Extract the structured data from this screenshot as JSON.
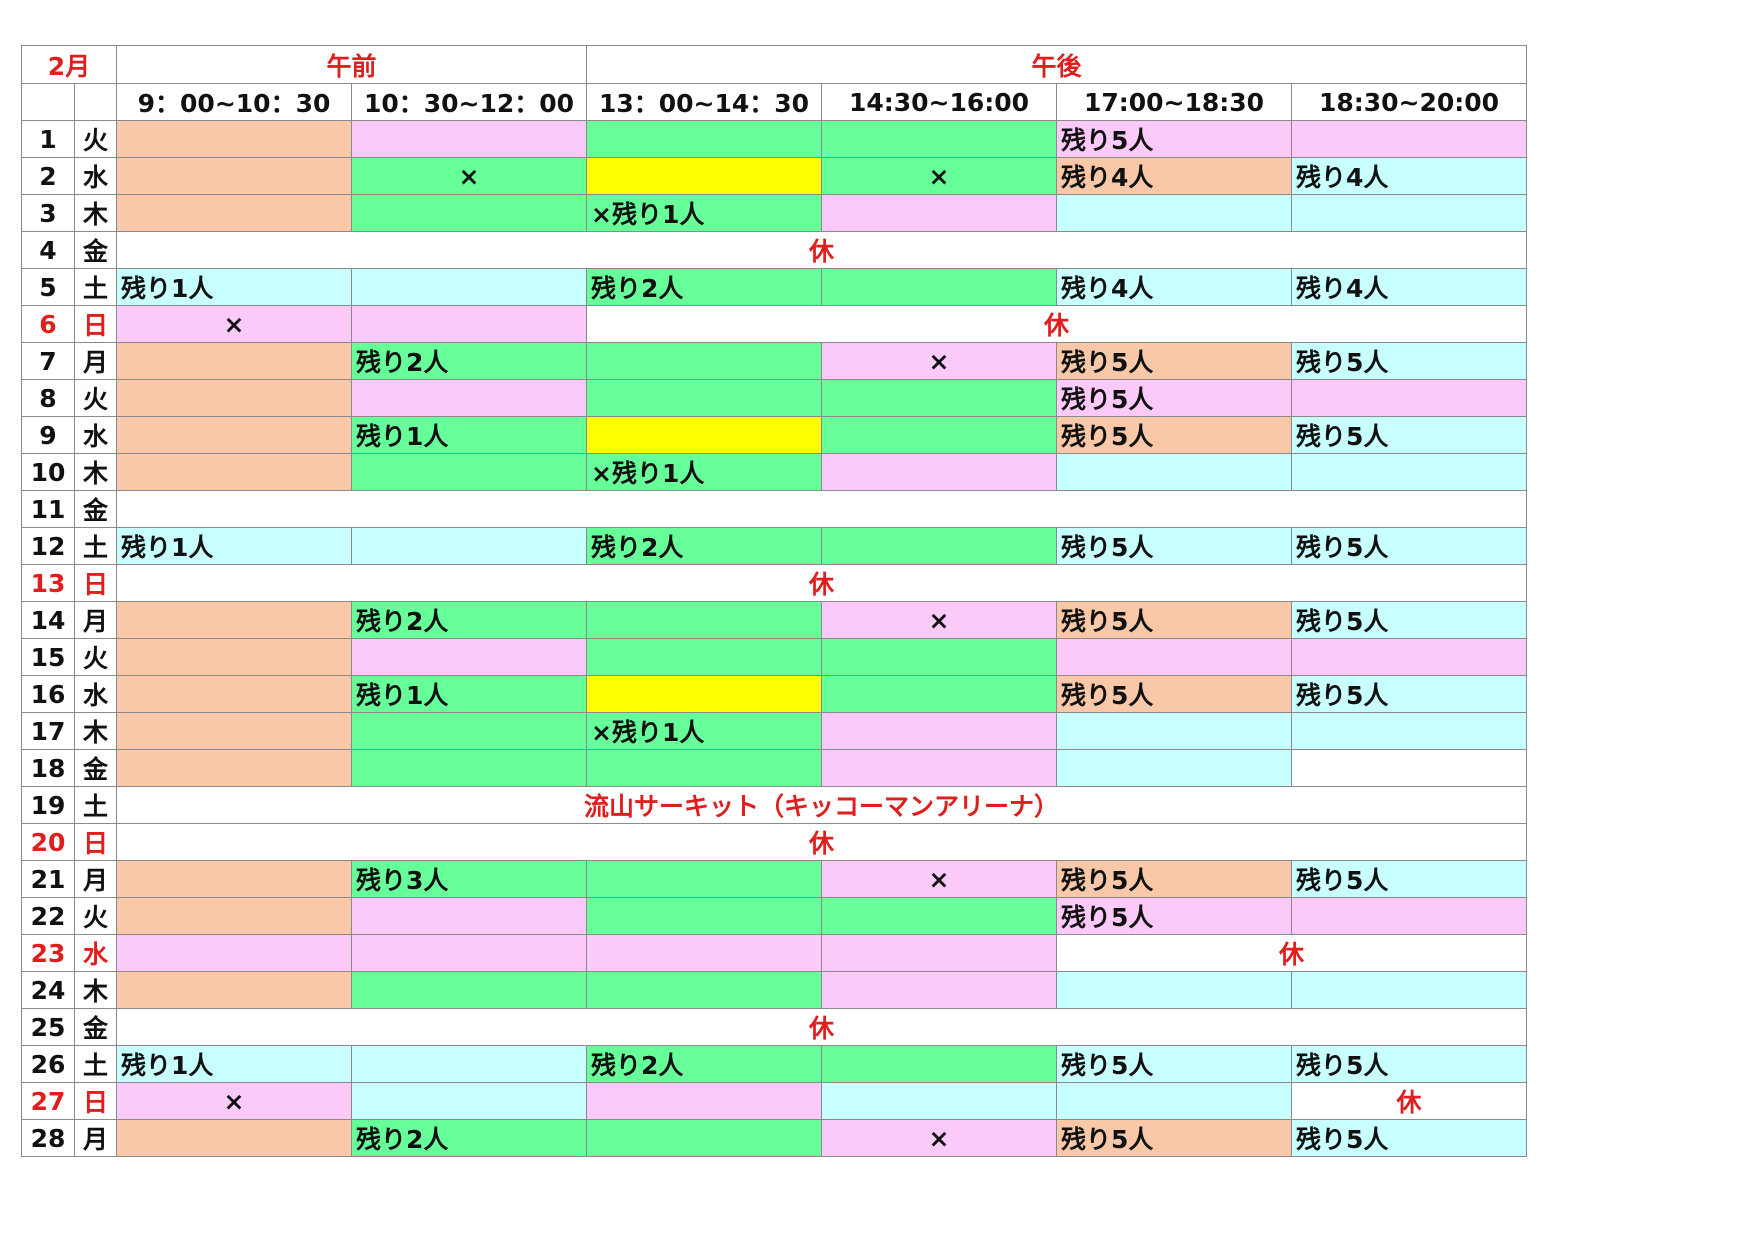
{
  "month": "2月",
  "header": {
    "am": "午前",
    "pm": "午後",
    "times": [
      "9：00~10：30",
      "10：30~12：00",
      "13：00~14：30",
      "14:30~16:00",
      "17:00~18:30",
      "18:30~20:00"
    ]
  },
  "colors": {
    "orange": "#f8c8a8",
    "pink": "#fbcaf8",
    "green": "#66ff99",
    "cyan": "#c8ffff",
    "yellow": "#ffff00",
    "white": "#ffffff",
    "red_text": "#e01e1e"
  },
  "rows": [
    {
      "day": "1",
      "dow": "火",
      "cells": [
        [
          "b",
          ""
        ],
        [
          "p",
          ""
        ],
        [
          "g",
          ""
        ],
        [
          "g",
          ""
        ],
        [
          "p",
          "残り5人",
          "left"
        ],
        [
          "p",
          ""
        ]
      ]
    },
    {
      "day": "2",
      "dow": "水",
      "cells": [
        [
          "b",
          ""
        ],
        [
          "g",
          "×",
          "center"
        ],
        [
          "y",
          ""
        ],
        [
          "g",
          "×",
          "center"
        ],
        [
          "b",
          "残り4人",
          "left"
        ],
        [
          "c",
          "残り4人",
          "left"
        ]
      ]
    },
    {
      "day": "3",
      "dow": "木",
      "cells": [
        [
          "b",
          ""
        ],
        [
          "g",
          ""
        ],
        [
          "g",
          "×残り1人",
          "left"
        ],
        [
          "p",
          ""
        ],
        [
          "c",
          ""
        ],
        [
          "c",
          ""
        ]
      ]
    },
    {
      "day": "4",
      "dow": "金",
      "cells": [
        [
          "w",
          "休",
          "center",
          6,
          true
        ]
      ]
    },
    {
      "day": "5",
      "dow": "土",
      "cells": [
        [
          "c",
          "残り1人",
          "left"
        ],
        [
          "c",
          ""
        ],
        [
          "g",
          "残り2人",
          "left"
        ],
        [
          "g",
          ""
        ],
        [
          "c",
          "残り4人",
          "left"
        ],
        [
          "c",
          "残り4人",
          "left"
        ]
      ]
    },
    {
      "day": "6",
      "dow": "日",
      "red": true,
      "cells": [
        [
          "p",
          "×",
          "center"
        ],
        [
          "p",
          ""
        ],
        [
          "w",
          "休",
          "center",
          4,
          true
        ]
      ]
    },
    {
      "day": "7",
      "dow": "月",
      "cells": [
        [
          "b",
          ""
        ],
        [
          "g",
          "残り2人",
          "left"
        ],
        [
          "g",
          ""
        ],
        [
          "p",
          "×",
          "center"
        ],
        [
          "b",
          "残り5人",
          "left"
        ],
        [
          "c",
          "残り5人",
          "left"
        ]
      ]
    },
    {
      "day": "8",
      "dow": "火",
      "cells": [
        [
          "b",
          ""
        ],
        [
          "p",
          ""
        ],
        [
          "g",
          ""
        ],
        [
          "g",
          ""
        ],
        [
          "p",
          "残り5人",
          "left"
        ],
        [
          "p",
          ""
        ]
      ]
    },
    {
      "day": "9",
      "dow": "水",
      "cells": [
        [
          "b",
          ""
        ],
        [
          "g",
          "残り1人",
          "left"
        ],
        [
          "y",
          ""
        ],
        [
          "g",
          ""
        ],
        [
          "b",
          "残り5人",
          "left"
        ],
        [
          "c",
          "残り5人",
          "left"
        ]
      ]
    },
    {
      "day": "10",
      "dow": "木",
      "cells": [
        [
          "b",
          ""
        ],
        [
          "g",
          ""
        ],
        [
          "g",
          "×残り1人",
          "left"
        ],
        [
          "p",
          ""
        ],
        [
          "c",
          ""
        ],
        [
          "c",
          ""
        ]
      ]
    },
    {
      "day": "11",
      "dow": "金",
      "cells": [
        [
          "w",
          "",
          "center",
          6
        ]
      ]
    },
    {
      "day": "12",
      "dow": "土",
      "cells": [
        [
          "c",
          "残り1人",
          "left"
        ],
        [
          "c",
          ""
        ],
        [
          "g",
          "残り2人",
          "left"
        ],
        [
          "g",
          ""
        ],
        [
          "c",
          "残り5人",
          "left"
        ],
        [
          "c",
          "残り5人",
          "left"
        ]
      ]
    },
    {
      "day": "13",
      "dow": "日",
      "red": true,
      "cells": [
        [
          "w",
          "休",
          "center",
          6,
          true
        ]
      ]
    },
    {
      "day": "14",
      "dow": "月",
      "cells": [
        [
          "b",
          ""
        ],
        [
          "g",
          "残り2人",
          "left"
        ],
        [
          "g",
          ""
        ],
        [
          "p",
          "×",
          "center"
        ],
        [
          "b",
          "残り5人",
          "left"
        ],
        [
          "c",
          "残り5人",
          "left"
        ]
      ]
    },
    {
      "day": "15",
      "dow": "火",
      "cells": [
        [
          "b",
          ""
        ],
        [
          "p",
          ""
        ],
        [
          "g",
          ""
        ],
        [
          "g",
          ""
        ],
        [
          "p",
          ""
        ],
        [
          "p",
          ""
        ]
      ]
    },
    {
      "day": "16",
      "dow": "水",
      "cells": [
        [
          "b",
          ""
        ],
        [
          "g",
          "残り1人",
          "left"
        ],
        [
          "y",
          ""
        ],
        [
          "g",
          ""
        ],
        [
          "b",
          "残り5人",
          "left"
        ],
        [
          "c",
          "残り5人",
          "left"
        ]
      ]
    },
    {
      "day": "17",
      "dow": "木",
      "cells": [
        [
          "b",
          ""
        ],
        [
          "g",
          ""
        ],
        [
          "g",
          "×残り1人",
          "left"
        ],
        [
          "p",
          ""
        ],
        [
          "c",
          ""
        ],
        [
          "c",
          ""
        ]
      ]
    },
    {
      "day": "18",
      "dow": "金",
      "cells": [
        [
          "b",
          ""
        ],
        [
          "g",
          ""
        ],
        [
          "g",
          ""
        ],
        [
          "p",
          ""
        ],
        [
          "c",
          ""
        ],
        [
          "w",
          ""
        ]
      ]
    },
    {
      "day": "19",
      "dow": "土",
      "cells": [
        [
          "w",
          "流山サーキット（キッコーマンアリーナ）",
          "center",
          6,
          true
        ]
      ]
    },
    {
      "day": "20",
      "dow": "日",
      "red": true,
      "cells": [
        [
          "w",
          "休",
          "center",
          6,
          true
        ]
      ]
    },
    {
      "day": "21",
      "dow": "月",
      "cells": [
        [
          "b",
          ""
        ],
        [
          "g",
          "残り3人",
          "left"
        ],
        [
          "g",
          ""
        ],
        [
          "p",
          "×",
          "center"
        ],
        [
          "b",
          "残り5人",
          "left"
        ],
        [
          "c",
          "残り5人",
          "left"
        ]
      ]
    },
    {
      "day": "22",
      "dow": "火",
      "cells": [
        [
          "b",
          ""
        ],
        [
          "p",
          ""
        ],
        [
          "g",
          ""
        ],
        [
          "g",
          ""
        ],
        [
          "p",
          "残り5人",
          "left"
        ],
        [
          "p",
          ""
        ]
      ]
    },
    {
      "day": "23",
      "dow": "水",
      "red": true,
      "cells": [
        [
          "p",
          ""
        ],
        [
          "p",
          ""
        ],
        [
          "p",
          ""
        ],
        [
          "p",
          ""
        ],
        [
          "w",
          "休",
          "center",
          2,
          true
        ]
      ]
    },
    {
      "day": "24",
      "dow": "木",
      "cells": [
        [
          "b",
          ""
        ],
        [
          "g",
          ""
        ],
        [
          "g",
          ""
        ],
        [
          "p",
          ""
        ],
        [
          "c",
          ""
        ],
        [
          "c",
          ""
        ]
      ]
    },
    {
      "day": "25",
      "dow": "金",
      "cells": [
        [
          "w",
          "休",
          "center",
          6,
          true
        ]
      ]
    },
    {
      "day": "26",
      "dow": "土",
      "cells": [
        [
          "c",
          "残り1人",
          "left"
        ],
        [
          "c",
          ""
        ],
        [
          "g",
          "残り2人",
          "left"
        ],
        [
          "g",
          ""
        ],
        [
          "c",
          "残り5人",
          "left"
        ],
        [
          "c",
          "残り5人",
          "left"
        ]
      ]
    },
    {
      "day": "27",
      "dow": "日",
      "red": true,
      "cells": [
        [
          "p",
          "×",
          "center"
        ],
        [
          "c",
          ""
        ],
        [
          "p",
          ""
        ],
        [
          "c",
          ""
        ],
        [
          "c",
          ""
        ],
        [
          "w",
          "休",
          "center",
          1,
          true
        ]
      ]
    },
    {
      "day": "28",
      "dow": "月",
      "cells": [
        [
          "b",
          ""
        ],
        [
          "g",
          "残り2人",
          "left"
        ],
        [
          "g",
          ""
        ],
        [
          "p",
          "×",
          "center"
        ],
        [
          "b",
          "残り5人",
          "left"
        ],
        [
          "c",
          "残り5人",
          "left"
        ]
      ]
    }
  ]
}
